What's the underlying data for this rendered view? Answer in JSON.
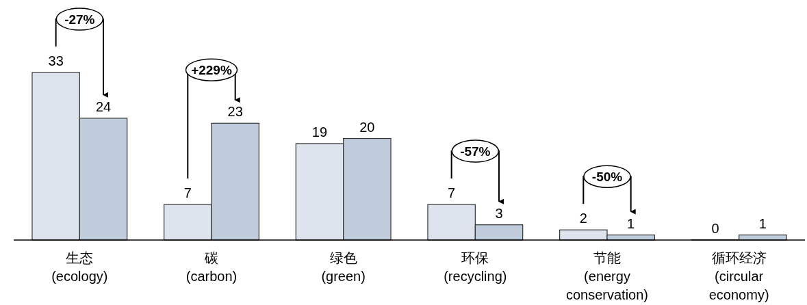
{
  "chart_data": {
    "type": "bar",
    "categories": [
      "生态\n(ecology)",
      "碳\n(carbon)",
      "绿色\n(green)",
      "环保\n(recycling)",
      "节能\n(energy\nconservation)",
      "循环经济\n(circular\neconomy)"
    ],
    "series": [
      {
        "color": "#dde4ee",
        "values": [
          33,
          7,
          19,
          7,
          2,
          0
        ]
      },
      {
        "color": "#c0cbdc",
        "values": [
          24,
          23,
          20,
          3,
          1,
          1
        ]
      }
    ],
    "data_labels": true,
    "annotations": [
      "-27%",
      "+229%",
      "-57%",
      "-50%"
    ]
  }
}
